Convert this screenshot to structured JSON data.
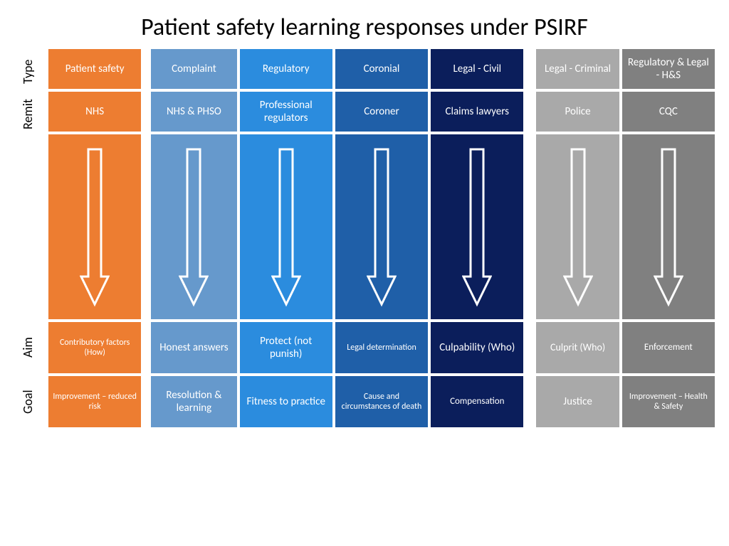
{
  "title": "Patient safety learning responses under PSIRF",
  "row_labels": {
    "type": "Type",
    "remit": "Remit",
    "aim": "Aim",
    "goal": "Goal"
  },
  "layout": {
    "row_heights": {
      "type": 56,
      "remit": 56,
      "arrow": 260,
      "aim": 72,
      "goal": 72
    },
    "cell_font_size": 14,
    "title_font_size": 34,
    "label_font_size": 18,
    "arrow_stroke": "#ffffff",
    "arrow_stroke_width": 3
  },
  "columns": [
    {
      "id": "patient-safety",
      "color": "#ed7d31",
      "gap_class": "",
      "type": "Patient safety",
      "remit": "NHS",
      "aim": "Contributory factors (How)",
      "goal": "Improvement – reduced risk",
      "aim_fs": 12,
      "goal_fs": 12
    },
    {
      "id": "complaint",
      "color": "#6699cc",
      "gap_class": "gap-left",
      "type": "Complaint",
      "remit": "NHS & PHSO",
      "aim": "Honest answers",
      "goal": "Resolution & learning",
      "aim_fs": 15,
      "goal_fs": 15
    },
    {
      "id": "regulatory",
      "color": "#2b8cde",
      "gap_class": "",
      "type": "Regulatory",
      "remit": "Professional regulators",
      "aim": "Protect (not punish)",
      "goal": "Fitness to practice",
      "aim_fs": 15,
      "goal_fs": 15
    },
    {
      "id": "coronial",
      "color": "#1f5fa8",
      "gap_class": "",
      "type": "Coronial",
      "remit": "Coroner",
      "aim": "Legal determination",
      "goal": "Cause and circumstances of death",
      "aim_fs": 12,
      "goal_fs": 12
    },
    {
      "id": "legal-civil",
      "color": "#0b1e5b",
      "gap_class": "",
      "type": "Legal - Civil",
      "remit": "Claims lawyers",
      "aim": "Culpability (Who)",
      "goal": "Compensation",
      "aim_fs": 15,
      "goal_fs": 13
    },
    {
      "id": "legal-criminal",
      "color": "#a9a9a9",
      "gap_class": "gap-left2",
      "type": "Legal - Criminal",
      "remit": "Police",
      "aim": "Culprit (Who)",
      "goal": "Justice",
      "aim_fs": 14,
      "goal_fs": 15
    },
    {
      "id": "regulatory-hs",
      "color": "#808080",
      "gap_class": "",
      "type": "Regulatory & Legal - H&S",
      "remit": "CQC",
      "aim": "Enforcement",
      "goal": "Improvement – Health & Safety",
      "aim_fs": 13,
      "goal_fs": 12
    }
  ]
}
